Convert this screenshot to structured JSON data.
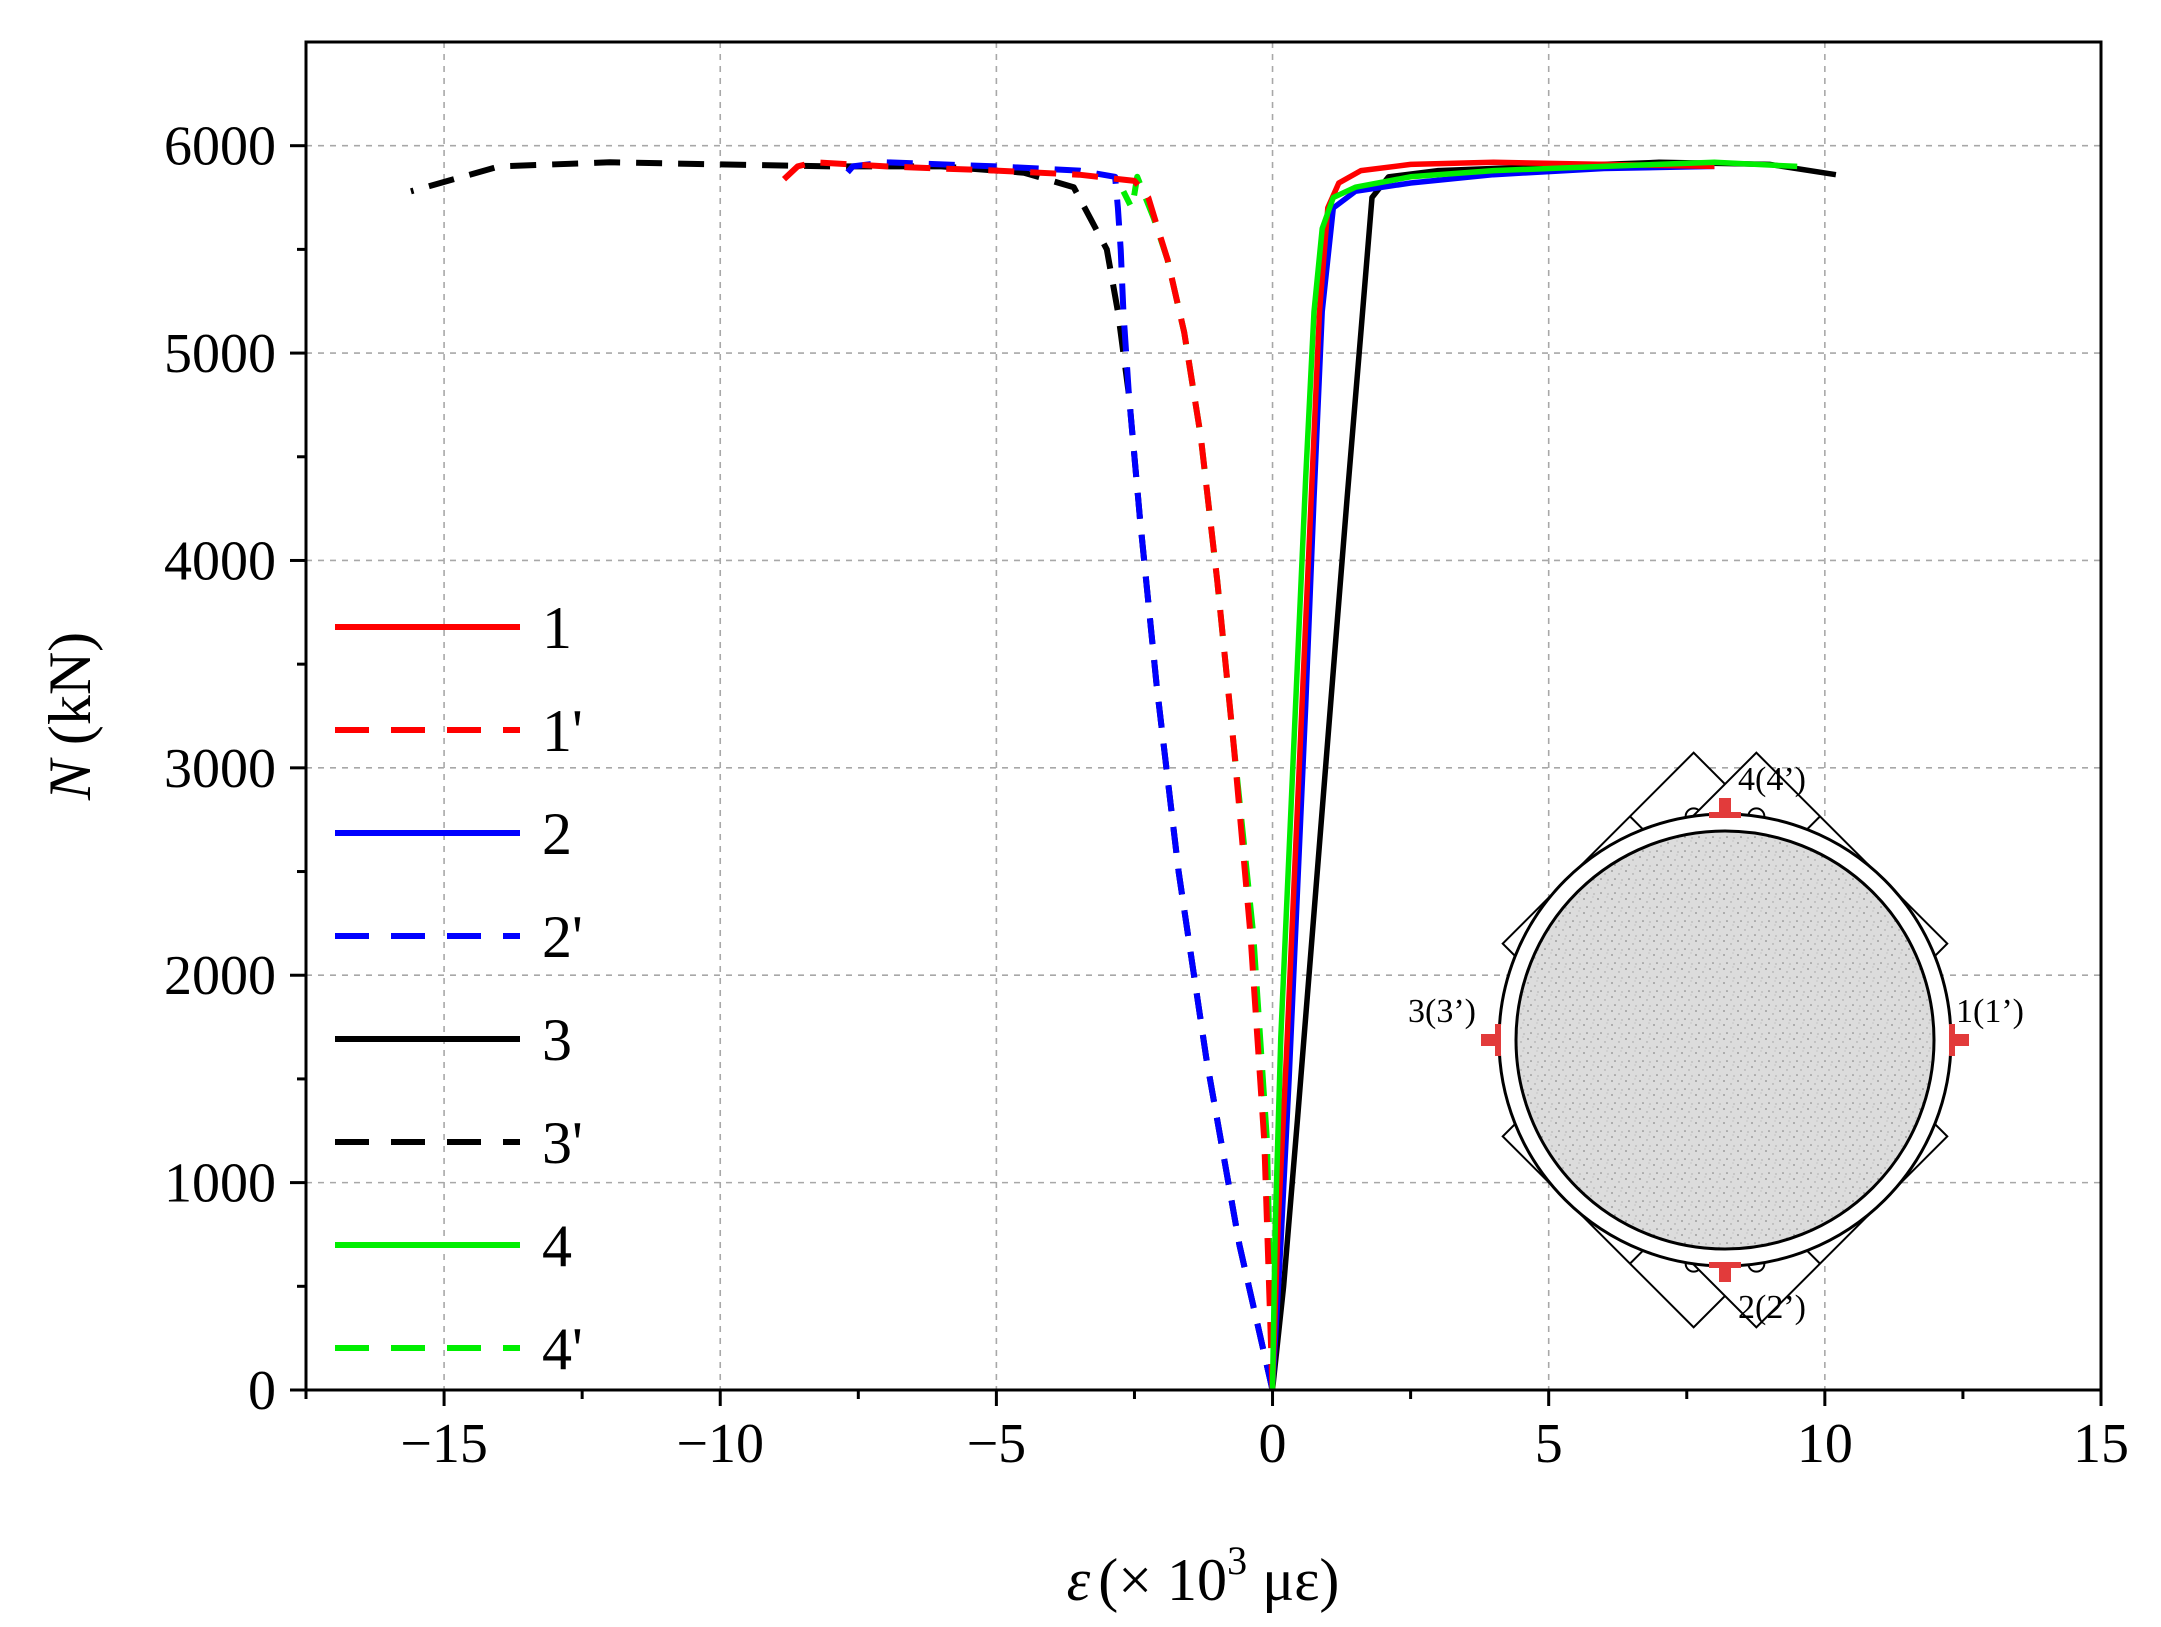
{
  "chart_data": {
    "type": "line",
    "title": "",
    "xlabel_symbol": "ε",
    "xlabel_unit_prefix": "(× 10",
    "xlabel_exponent": "3",
    "xlabel_unit_suffix": " με)",
    "ylabel_symbol": "N",
    "ylabel_unit": " (kN)",
    "xlim": [
      -17.5,
      15
    ],
    "ylim": [
      0,
      6500
    ],
    "x_ticks": [
      -15,
      -10,
      -5,
      0,
      5,
      10,
      15
    ],
    "x_tick_labels": [
      "−15",
      "−10",
      "−5",
      "0",
      "5",
      "10",
      "15"
    ],
    "y_ticks": [
      0,
      1000,
      2000,
      3000,
      4000,
      5000,
      6000
    ],
    "y_tick_labels": [
      "0",
      "1000",
      "2000",
      "3000",
      "4000",
      "5000",
      "6000"
    ],
    "grid": true,
    "legend_position": "left",
    "series": [
      {
        "name": "1",
        "color": "#ff0000",
        "style": "solid",
        "x": [
          0,
          0.1,
          0.25,
          0.4,
          0.55,
          0.7,
          0.85,
          1.0,
          1.2,
          1.6,
          2.5,
          4,
          6,
          8
        ],
        "y": [
          0,
          800,
          1600,
          2500,
          3400,
          4300,
          5200,
          5700,
          5820,
          5880,
          5910,
          5920,
          5910,
          5900
        ]
      },
      {
        "name": "1'",
        "color": "#ff0000",
        "style": "dashed",
        "x": [
          0,
          -0.15,
          -0.4,
          -0.7,
          -1.0,
          -1.3,
          -1.6,
          -1.9,
          -2.1,
          -2.25,
          -2.5,
          -3.5,
          -5,
          -7,
          -8.3,
          -8.6,
          -9.0
        ],
        "y": [
          0,
          1200,
          2200,
          3100,
          3900,
          4600,
          5100,
          5450,
          5620,
          5750,
          5830,
          5860,
          5880,
          5900,
          5920,
          5900,
          5800
        ]
      },
      {
        "name": "2",
        "color": "#0000ff",
        "style": "solid",
        "x": [
          0,
          0.15,
          0.3,
          0.45,
          0.6,
          0.75,
          0.9,
          1.1,
          1.5,
          2.5,
          4,
          6,
          8
        ],
        "y": [
          0,
          700,
          1500,
          2400,
          3300,
          4300,
          5200,
          5700,
          5780,
          5820,
          5860,
          5890,
          5900
        ]
      },
      {
        "name": "2'",
        "color": "#0000ff",
        "style": "dashed",
        "x": [
          0,
          -0.6,
          -1.2,
          -1.7,
          -2.1,
          -2.4,
          -2.6,
          -2.7,
          -2.75,
          -2.8,
          -2.85,
          -3.5,
          -5,
          -7,
          -7.6,
          -7.8
        ],
        "y": [
          0,
          700,
          1600,
          2500,
          3400,
          4200,
          4800,
          5200,
          5500,
          5700,
          5850,
          5880,
          5900,
          5920,
          5900,
          5840
        ]
      },
      {
        "name": "3",
        "color": "#000000",
        "style": "solid",
        "x": [
          0,
          0.2,
          0.45,
          0.75,
          1.05,
          1.35,
          1.6,
          1.8,
          2.1,
          3,
          5,
          7,
          9,
          10.2
        ],
        "y": [
          0,
          500,
          1300,
          2300,
          3300,
          4300,
          5100,
          5750,
          5850,
          5880,
          5900,
          5920,
          5910,
          5860
        ]
      },
      {
        "name": "3'",
        "color": "#000000",
        "style": "dashed",
        "x": [
          0,
          -0.6,
          -1.2,
          -1.7,
          -2.1,
          -2.4,
          -2.6,
          -2.8,
          -3.0,
          -3.3,
          -3.6,
          -4.5,
          -6,
          -8,
          -10,
          -12,
          -14,
          -15.6
        ],
        "y": [
          0,
          700,
          1600,
          2500,
          3400,
          4200,
          4800,
          5200,
          5500,
          5650,
          5800,
          5870,
          5900,
          5900,
          5910,
          5920,
          5900,
          5780
        ]
      },
      {
        "name": "4",
        "color": "#00ee00",
        "style": "solid",
        "x": [
          0,
          0.05,
          0.15,
          0.3,
          0.45,
          0.6,
          0.75,
          0.9,
          1.1,
          1.5,
          2.5,
          4,
          6,
          8,
          9.5
        ],
        "y": [
          0,
          800,
          1700,
          2600,
          3500,
          4400,
          5200,
          5600,
          5750,
          5800,
          5850,
          5880,
          5900,
          5920,
          5900
        ]
      },
      {
        "name": "4'",
        "color": "#00ee00",
        "style": "dashed",
        "x": [
          0,
          -0.1,
          -0.35,
          -0.7,
          -1.0,
          -1.3,
          -1.6,
          -1.9,
          -2.15,
          -2.3,
          -2.45,
          -2.5,
          -2.55,
          -2.7
        ],
        "y": [
          0,
          1200,
          2200,
          3100,
          3900,
          4600,
          5100,
          5450,
          5650,
          5750,
          5850,
          5770,
          5700,
          5780
        ]
      }
    ],
    "inset": {
      "label_top": "4(4’)",
      "label_left": "3(3’)",
      "label_right": "1(1’)",
      "label_bottom": "2(2’)"
    }
  }
}
